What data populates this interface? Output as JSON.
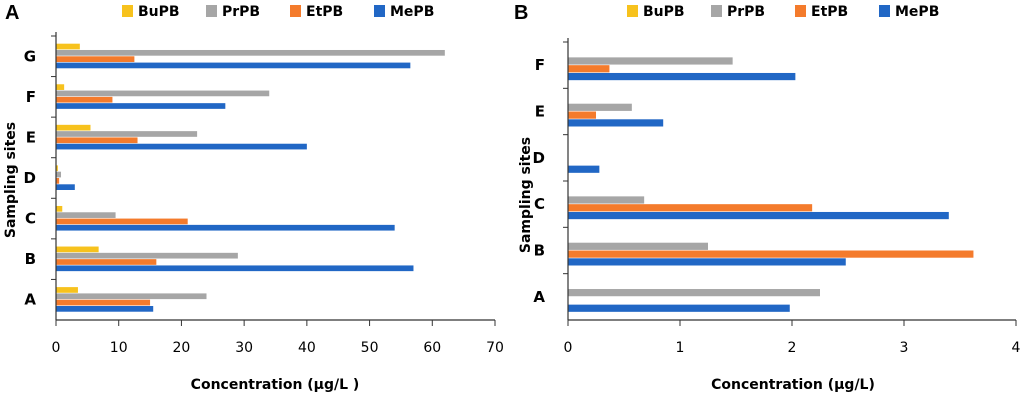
{
  "legend_series": [
    "BuPB",
    "PrPB",
    "EtPB",
    "MePB"
  ],
  "colors": {
    "BuPB": "#f7c21d",
    "PrPB": "#a6a6a6",
    "EtPB": "#f47b2c",
    "MePB": "#2167c5"
  },
  "chart_data": [
    {
      "panel": "A",
      "type": "bar",
      "orientation": "horizontal",
      "categories": [
        "A",
        "B",
        "C",
        "D",
        "E",
        "F",
        "G"
      ],
      "series": [
        {
          "name": "BuPB",
          "values": [
            3.5,
            6.8,
            1.0,
            0.3,
            5.5,
            1.3,
            3.8
          ]
        },
        {
          "name": "PrPB",
          "values": [
            24.0,
            29.0,
            9.5,
            0.8,
            22.5,
            34.0,
            62.0
          ]
        },
        {
          "name": "EtPB",
          "values": [
            15.0,
            16.0,
            21.0,
            0.5,
            13.0,
            9.0,
            12.5
          ]
        },
        {
          "name": "MePB",
          "values": [
            15.5,
            57.0,
            54.0,
            3.0,
            40.0,
            27.0,
            56.5
          ]
        }
      ],
      "xlabel": "Concentration (µg/L )",
      "ylabel": "Sampling sites",
      "xlim": [
        0,
        70
      ],
      "xticks": [
        "0",
        "10",
        "20",
        "30",
        "40",
        "50",
        "60",
        "70"
      ],
      "legend_position": "top"
    },
    {
      "panel": "B",
      "type": "bar",
      "orientation": "horizontal",
      "categories": [
        "A",
        "B",
        "C",
        "D",
        "E",
        "F"
      ],
      "series": [
        {
          "name": "BuPB",
          "values": [
            0,
            0,
            0,
            0,
            0,
            0
          ]
        },
        {
          "name": "PrPB",
          "values": [
            2.25,
            1.25,
            0.68,
            0,
            0.57,
            1.47
          ]
        },
        {
          "name": "EtPB",
          "values": [
            0,
            3.62,
            2.18,
            0,
            0.25,
            0.37
          ]
        },
        {
          "name": "MePB",
          "values": [
            1.98,
            2.48,
            3.4,
            0.28,
            0.85,
            2.03
          ]
        }
      ],
      "xlabel": "Concentration (µg/L)",
      "ylabel": "Sampling sites",
      "xlim": [
        0,
        4
      ],
      "xticks": [
        "0",
        "1",
        "2",
        "3",
        "4"
      ],
      "legend_position": "top"
    }
  ]
}
